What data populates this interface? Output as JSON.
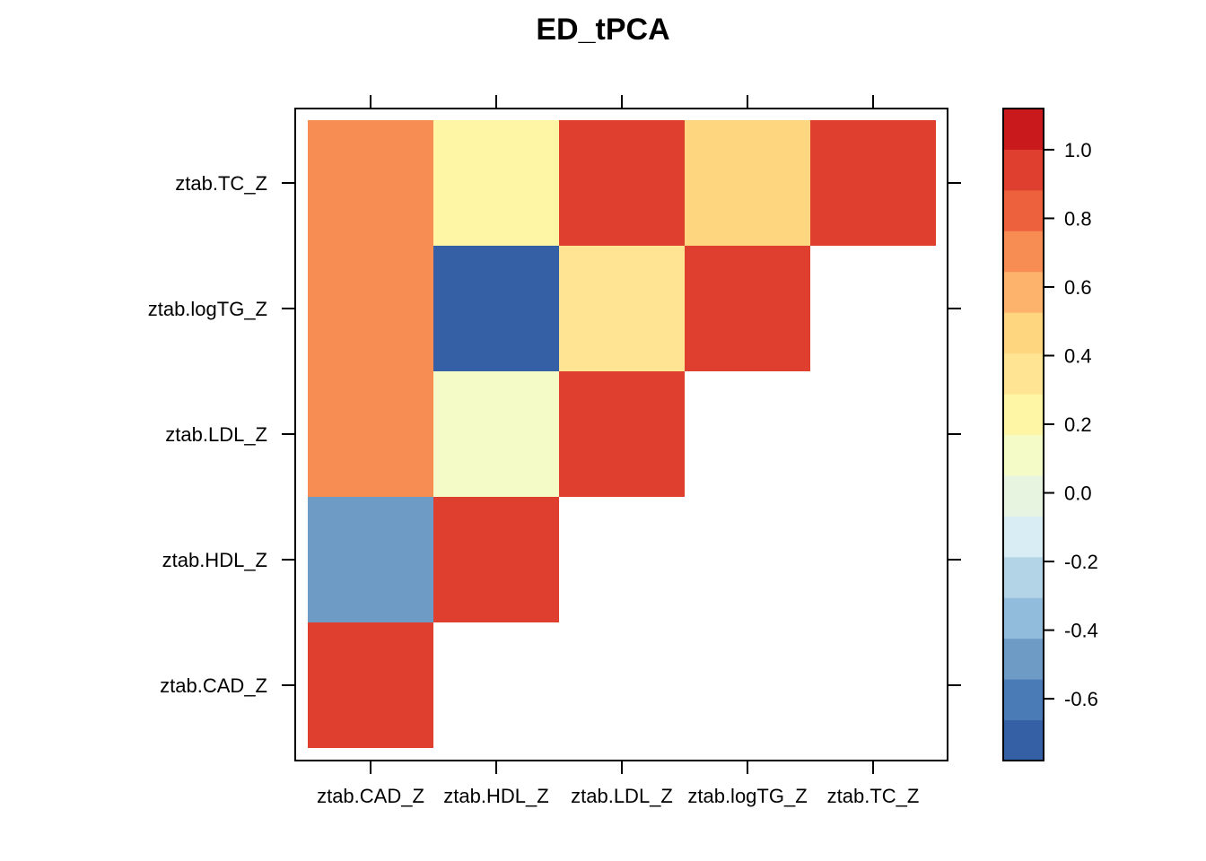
{
  "chart_data": {
    "type": "heatmap",
    "title": "ED_tPCA",
    "xlabel": "",
    "ylabel": "",
    "x_categories": [
      "ztab.CAD_Z",
      "ztab.HDL_Z",
      "ztab.LDL_Z",
      "ztab.logTG_Z",
      "ztab.TC_Z"
    ],
    "y_categories": [
      "ztab.CAD_Z",
      "ztab.HDL_Z",
      "ztab.LDL_Z",
      "ztab.logTG_Z",
      "ztab.TC_Z"
    ],
    "triangle": "upper",
    "cells": [
      {
        "x": "ztab.CAD_Z",
        "y": "ztab.CAD_Z",
        "value": 1.0
      },
      {
        "x": "ztab.CAD_Z",
        "y": "ztab.HDL_Z",
        "value": -0.5
      },
      {
        "x": "ztab.CAD_Z",
        "y": "ztab.LDL_Z",
        "value": 0.75
      },
      {
        "x": "ztab.CAD_Z",
        "y": "ztab.logTG_Z",
        "value": 0.75
      },
      {
        "x": "ztab.CAD_Z",
        "y": "ztab.TC_Z",
        "value": 0.7
      },
      {
        "x": "ztab.HDL_Z",
        "y": "ztab.HDL_Z",
        "value": 1.0
      },
      {
        "x": "ztab.HDL_Z",
        "y": "ztab.LDL_Z",
        "value": 0.15
      },
      {
        "x": "ztab.HDL_Z",
        "y": "ztab.logTG_Z",
        "value": -0.75
      },
      {
        "x": "ztab.HDL_Z",
        "y": "ztab.TC_Z",
        "value": 0.25
      },
      {
        "x": "ztab.LDL_Z",
        "y": "ztab.LDL_Z",
        "value": 1.0
      },
      {
        "x": "ztab.LDL_Z",
        "y": "ztab.logTG_Z",
        "value": 0.35
      },
      {
        "x": "ztab.LDL_Z",
        "y": "ztab.TC_Z",
        "value": 0.95
      },
      {
        "x": "ztab.logTG_Z",
        "y": "ztab.logTG_Z",
        "value": 1.0
      },
      {
        "x": "ztab.logTG_Z",
        "y": "ztab.TC_Z",
        "value": 0.45
      },
      {
        "x": "ztab.TC_Z",
        "y": "ztab.TC_Z",
        "value": 1.0
      }
    ],
    "colorbar": {
      "range": [
        -0.78,
        1.12
      ],
      "ticks": [
        1.0,
        0.8,
        0.6,
        0.4,
        0.2,
        0.0,
        -0.2,
        -0.4,
        -0.6
      ],
      "tick_labels": [
        "1.0",
        "0.8",
        "0.6",
        "0.4",
        "0.2",
        "0.0",
        "-0.2",
        "-0.4",
        "-0.6"
      ],
      "colors_bottom_to_top": [
        "#3660a5",
        "#4a7bb7",
        "#6d9bc6",
        "#91bcdb",
        "#b3d4e6",
        "#d8edf4",
        "#e7f4e0",
        "#f5fbc6",
        "#fef6a4",
        "#fee493",
        "#fed680",
        "#fdb36b",
        "#f88d53",
        "#ee613d",
        "#de3f2f",
        "#c9191d"
      ]
    },
    "legend": "right",
    "grid": false
  }
}
